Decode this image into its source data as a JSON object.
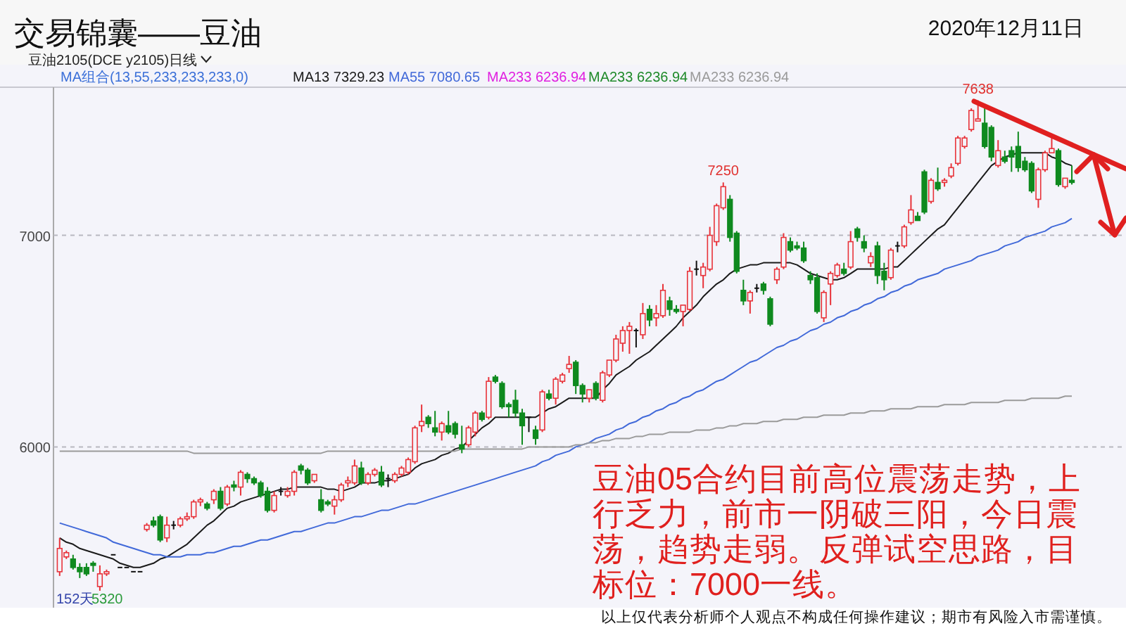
{
  "chart_data": {
    "type": "candlestick",
    "title": "交易锦囊——豆油",
    "subtitle": "2020年12月11日",
    "categories": [
      null,
      null,
      null,
      null,
      null,
      null,
      null,
      null,
      null,
      null,
      null,
      null,
      null,
      null,
      null,
      null,
      null,
      null,
      null,
      null,
      null,
      null,
      null,
      null,
      null,
      null,
      null,
      null,
      null,
      null,
      null,
      null,
      null,
      null,
      null,
      null,
      null,
      null,
      null,
      null,
      null,
      null,
      null,
      null,
      null,
      null,
      null,
      null,
      null,
      null,
      null,
      null,
      null,
      null,
      null,
      null,
      null,
      null,
      null,
      null,
      null,
      null,
      null,
      null,
      null,
      null,
      null,
      null,
      null,
      null,
      null,
      null,
      null,
      null,
      null,
      null,
      null,
      null,
      null,
      null,
      null,
      null,
      null,
      null,
      null,
      null,
      null,
      null,
      null,
      null,
      null,
      null,
      null,
      null,
      null,
      null,
      null,
      null,
      null,
      null,
      null,
      null,
      null,
      null,
      null,
      null,
      null,
      null,
      null,
      null,
      null,
      null,
      null,
      null,
      null,
      null,
      null,
      null,
      null,
      null,
      null,
      null,
      null,
      null,
      null,
      null,
      null,
      null,
      null,
      null,
      null,
      null,
      null,
      null,
      null,
      null,
      null,
      null,
      null,
      null,
      null,
      null,
      null,
      null,
      null,
      null,
      null,
      null,
      null,
      null,
      null,
      null
    ],
    "ohlc": [
      [
        5410,
        5570,
        5390,
        5520
      ],
      [
        5480,
        5510,
        5470,
        5500
      ],
      [
        5470,
        5490,
        5420,
        5430
      ],
      [
        5430,
        5450,
        5380,
        5410
      ],
      [
        5430,
        5450,
        5390,
        5400
      ],
      [
        5450,
        5460,
        5410,
        5440
      ],
      [
        5340,
        5440,
        5320,
        5400
      ],
      [
        5400,
        5420,
        5390,
        5410
      ],
      [
        5490,
        5490,
        5490,
        5490
      ],
      [
        5430,
        5430,
        5430,
        5430
      ],
      [
        5430,
        5430,
        5430,
        5430
      ],
      [
        5410,
        5410,
        5410,
        5410
      ],
      [
        5410,
        5410,
        5410,
        5410
      ],
      [
        5610,
        5640,
        5600,
        5630
      ],
      [
        5650,
        5670,
        5620,
        5630
      ],
      [
        5670,
        5680,
        5550,
        5560
      ],
      [
        5570,
        5670,
        5550,
        5630
      ],
      [
        5630,
        5650,
        5610,
        5630
      ],
      [
        5630,
        5670,
        5620,
        5660
      ],
      [
        5660,
        5690,
        5650,
        5670
      ],
      [
        5670,
        5750,
        5660,
        5740
      ],
      [
        5740,
        5760,
        5720,
        5750
      ],
      [
        5730,
        5740,
        5700,
        5710
      ],
      [
        5750,
        5800,
        5730,
        5790
      ],
      [
        5790,
        5810,
        5700,
        5710
      ],
      [
        5730,
        5820,
        5720,
        5810
      ],
      [
        5820,
        5840,
        5790,
        5810
      ],
      [
        5810,
        5890,
        5770,
        5880
      ],
      [
        5870,
        5880,
        5830,
        5850
      ],
      [
        5850,
        5860,
        5820,
        5830
      ],
      [
        5830,
        5840,
        5760,
        5770
      ],
      [
        5790,
        5810,
        5690,
        5700
      ],
      [
        5700,
        5790,
        5690,
        5770
      ],
      [
        5790,
        5810,
        5770,
        5790
      ],
      [
        5770,
        5810,
        5760,
        5790
      ],
      [
        5790,
        5890,
        5770,
        5880
      ],
      [
        5910,
        5920,
        5870,
        5890
      ],
      [
        5890,
        5900,
        5820,
        5830
      ],
      [
        5840,
        5870,
        5830,
        5870
      ],
      [
        5750,
        5800,
        5690,
        5700
      ],
      [
        5740,
        5750,
        5720,
        5730
      ],
      [
        5720,
        5770,
        5680,
        5750
      ],
      [
        5750,
        5830,
        5740,
        5820
      ],
      [
        5830,
        5860,
        5810,
        5840
      ],
      [
        5830,
        5940,
        5820,
        5910
      ],
      [
        5900,
        5930,
        5820,
        5830
      ],
      [
        5830,
        5880,
        5820,
        5870
      ],
      [
        5870,
        5900,
        5860,
        5890
      ],
      [
        5880,
        5910,
        5810,
        5820
      ],
      [
        5850,
        5870,
        5810,
        5850
      ],
      [
        5840,
        5880,
        5830,
        5870
      ],
      [
        5870,
        5910,
        5860,
        5900
      ],
      [
        5880,
        5950,
        5870,
        5940
      ],
      [
        5930,
        6100,
        5920,
        6090
      ],
      [
        6100,
        6200,
        6070,
        6120
      ],
      [
        6140,
        6150,
        6090,
        6110
      ],
      [
        6090,
        6170,
        6050,
        6070
      ],
      [
        6070,
        6120,
        6030,
        6110
      ],
      [
        6100,
        6170,
        6060,
        6070
      ],
      [
        6110,
        6120,
        6040,
        6060
      ],
      [
        6010,
        6100,
        5970,
        5990
      ],
      [
        6010,
        6100,
        6000,
        6090
      ],
      [
        6070,
        6170,
        6050,
        6160
      ],
      [
        6160,
        6170,
        6120,
        6130
      ],
      [
        6140,
        6330,
        6130,
        6310
      ],
      [
        6330,
        6340,
        6300,
        6310
      ],
      [
        6300,
        6310,
        6180,
        6190
      ],
      [
        6200,
        6210,
        6140,
        6190
      ],
      [
        6220,
        6270,
        6140,
        6160
      ],
      [
        6160,
        6180,
        6010,
        6100
      ],
      [
        6140,
        6140,
        6070,
        6140
      ],
      [
        6080,
        6100,
        6010,
        6040
      ],
      [
        6080,
        6270,
        6070,
        6260
      ],
      [
        6250,
        6270,
        6220,
        6230
      ],
      [
        6230,
        6330,
        6200,
        6320
      ],
      [
        6310,
        6350,
        6300,
        6340
      ],
      [
        6370,
        6430,
        6350,
        6390
      ],
      [
        6400,
        6410,
        6250,
        6290
      ],
      [
        6290,
        6300,
        6210,
        6250
      ],
      [
        6230,
        6270,
        6210,
        6270
      ],
      [
        6300,
        6310,
        6220,
        6230
      ],
      [
        6220,
        6360,
        6210,
        6350
      ],
      [
        6340,
        6410,
        6330,
        6410
      ],
      [
        6410,
        6530,
        6400,
        6510
      ],
      [
        6490,
        6570,
        6450,
        6550
      ],
      [
        6550,
        6590,
        6440,
        6570
      ],
      [
        6550,
        6560,
        6470,
        6550
      ],
      [
        6530,
        6680,
        6510,
        6630
      ],
      [
        6650,
        6670,
        6570,
        6600
      ],
      [
        6610,
        6670,
        6570,
        6630
      ],
      [
        6620,
        6770,
        6610,
        6740
      ],
      [
        6690,
        6710,
        6620,
        6650
      ],
      [
        6650,
        6670,
        6630,
        6640
      ],
      [
        6640,
        6670,
        6570,
        6670
      ],
      [
        6650,
        6850,
        6640,
        6830
      ],
      [
        6840,
        6880,
        6810,
        6840
      ],
      [
        6810,
        6870,
        6750,
        6850
      ],
      [
        6840,
        7040,
        6830,
        7000
      ],
      [
        6970,
        7150,
        6950,
        7140
      ],
      [
        7130,
        7250,
        7120,
        7230
      ],
      [
        7170,
        7190,
        6970,
        6990
      ],
      [
        7010,
        7020,
        6820,
        6830
      ],
      [
        6740,
        6790,
        6670,
        6690
      ],
      [
        6690,
        6740,
        6630,
        6730
      ],
      [
        6750,
        6770,
        6730,
        6750
      ],
      [
        6770,
        6780,
        6720,
        6740
      ],
      [
        6700,
        6710,
        6570,
        6580
      ],
      [
        6790,
        6850,
        6770,
        6840
      ],
      [
        6850,
        7010,
        6840,
        6990
      ],
      [
        6970,
        6990,
        6920,
        6930
      ],
      [
        6950,
        6970,
        6930,
        6940
      ],
      [
        6940,
        6970,
        6870,
        6880
      ],
      [
        6810,
        6830,
        6770,
        6790
      ],
      [
        6800,
        6820,
        6630,
        6640
      ],
      [
        6610,
        6740,
        6590,
        6730
      ],
      [
        6770,
        6830,
        6670,
        6820
      ],
      [
        6810,
        6870,
        6800,
        6860
      ],
      [
        6840,
        6870,
        6810,
        6820
      ],
      [
        6850,
        7020,
        6840,
        6970
      ],
      [
        7030,
        7040,
        6970,
        6990
      ],
      [
        6970,
        7000,
        6920,
        6940
      ],
      [
        6870,
        6920,
        6850,
        6900
      ],
      [
        6950,
        6970,
        6770,
        6810
      ],
      [
        6830,
        6870,
        6740,
        6790
      ],
      [
        6800,
        6940,
        6790,
        6930
      ],
      [
        6950,
        6970,
        6920,
        6950
      ],
      [
        6950,
        7050,
        6940,
        7040
      ],
      [
        7060,
        7190,
        7050,
        7120
      ],
      [
        7090,
        7110,
        7070,
        7070
      ],
      [
        7300,
        7310,
        7100,
        7110
      ],
      [
        7160,
        7270,
        7150,
        7260
      ],
      [
        7250,
        7320,
        7210,
        7220
      ],
      [
        7250,
        7270,
        7230,
        7260
      ],
      [
        7280,
        7340,
        7270,
        7320
      ],
      [
        7340,
        7470,
        7330,
        7460
      ],
      [
        7420,
        7470,
        7410,
        7460
      ],
      [
        7500,
        7600,
        7490,
        7590
      ],
      [
        7540,
        7638,
        7540,
        7550
      ],
      [
        7530,
        7600,
        7410,
        7420
      ],
      [
        7510,
        7520,
        7350,
        7370
      ],
      [
        7330,
        7450,
        7320,
        7400
      ],
      [
        7370,
        7400,
        7340,
        7350
      ],
      [
        7400,
        7420,
        7300,
        7370
      ],
      [
        7420,
        7490,
        7300,
        7320
      ],
      [
        7350,
        7370,
        7300,
        7310
      ],
      [
        7340,
        7350,
        7200,
        7210
      ],
      [
        7170,
        7320,
        7130,
        7310
      ],
      [
        7310,
        7400,
        7300,
        7390
      ],
      [
        7390,
        7470,
        7390,
        7410
      ],
      [
        7400,
        7410,
        7230,
        7240
      ],
      [
        7230,
        7270,
        7220,
        7270
      ],
      [
        7260,
        7330,
        7240,
        7250
      ]
    ],
    "series": [
      {
        "name": "MA13 7329.23",
        "type": "line",
        "color": "#1a1a1a",
        "values": [
          5570,
          5550,
          5540,
          5520,
          5510,
          5500,
          5490,
          5480,
          5470,
          5450,
          5440,
          5430,
          5430,
          5440,
          5450,
          5470,
          5480,
          5500,
          5520,
          5540,
          5570,
          5600,
          5630,
          5650,
          5680,
          5710,
          5720,
          5740,
          5750,
          5760,
          5770,
          5780,
          5790,
          5800,
          5800,
          5810,
          5810,
          5810,
          5810,
          5810,
          5800,
          5800,
          5790,
          5800,
          5810,
          5830,
          5830,
          5830,
          5840,
          5840,
          5850,
          5860,
          5870,
          5900,
          5920,
          5930,
          5940,
          5960,
          5970,
          5990,
          6000,
          6030,
          6060,
          6090,
          6110,
          6140,
          6140,
          6140,
          6140,
          6140,
          6140,
          6140,
          6160,
          6180,
          6190,
          6210,
          6230,
          6230,
          6230,
          6230,
          6230,
          6270,
          6300,
          6340,
          6360,
          6380,
          6410,
          6430,
          6450,
          6480,
          6510,
          6540,
          6570,
          6610,
          6640,
          6670,
          6710,
          6740,
          6770,
          6790,
          6820,
          6840,
          6850,
          6860,
          6860,
          6870,
          6870,
          6870,
          6870,
          6870,
          6860,
          6840,
          6820,
          6810,
          6800,
          6790,
          6790,
          6800,
          6820,
          6840,
          6840,
          6840,
          6840,
          6840,
          6850,
          6850,
          6880,
          6910,
          6940,
          6970,
          7000,
          7030,
          7050,
          7090,
          7130,
          7170,
          7210,
          7250,
          7290,
          7330,
          7350,
          7370,
          7380,
          7390,
          7390,
          7390,
          7390,
          7390,
          7370,
          7360,
          7340,
          7330
        ]
      },
      {
        "name": "MA55 7080.65",
        "type": "line",
        "color": "#4169d9",
        "values": [
          5640,
          5630,
          5620,
          5610,
          5600,
          5590,
          5580,
          5570,
          5550,
          5540,
          5530,
          5520,
          5510,
          5500,
          5490,
          5490,
          5480,
          5480,
          5480,
          5490,
          5490,
          5490,
          5500,
          5500,
          5510,
          5520,
          5530,
          5530,
          5540,
          5550,
          5560,
          5560,
          5570,
          5580,
          5590,
          5600,
          5600,
          5610,
          5620,
          5630,
          5640,
          5640,
          5650,
          5660,
          5670,
          5670,
          5680,
          5690,
          5700,
          5700,
          5710,
          5720,
          5730,
          5730,
          5740,
          5750,
          5760,
          5770,
          5780,
          5790,
          5800,
          5810,
          5820,
          5830,
          5840,
          5850,
          5860,
          5870,
          5880,
          5890,
          5900,
          5910,
          5930,
          5940,
          5960,
          5970,
          5980,
          6000,
          6010,
          6020,
          6040,
          6050,
          6060,
          6080,
          6090,
          6110,
          6120,
          6140,
          6150,
          6170,
          6180,
          6200,
          6210,
          6230,
          6240,
          6260,
          6270,
          6290,
          6310,
          6320,
          6340,
          6360,
          6380,
          6400,
          6410,
          6430,
          6450,
          6470,
          6480,
          6500,
          6510,
          6530,
          6550,
          6560,
          6580,
          6590,
          6610,
          6620,
          6640,
          6650,
          6670,
          6680,
          6700,
          6710,
          6730,
          6740,
          6760,
          6770,
          6790,
          6800,
          6810,
          6820,
          6840,
          6850,
          6860,
          6870,
          6880,
          6900,
          6910,
          6920,
          6930,
          6950,
          6960,
          6970,
          6990,
          7000,
          7010,
          7020,
          7040,
          7050,
          7060,
          7080
        ]
      },
      {
        "name": "MA233 6236.94",
        "type": "line",
        "color": "#9a9a9a",
        "values": [
          5980,
          5980,
          5980,
          5980,
          5980,
          5980,
          5980,
          5980,
          5980,
          5980,
          5980,
          5980,
          5980,
          5980,
          5980,
          5980,
          5980,
          5980,
          5980,
          5980,
          5970,
          5970,
          5970,
          5970,
          5970,
          5970,
          5970,
          5970,
          5970,
          5970,
          5970,
          5970,
          5970,
          5970,
          5970,
          5970,
          5970,
          5970,
          5970,
          5970,
          5980,
          5980,
          5980,
          5980,
          5980,
          5980,
          5980,
          5980,
          5980,
          5980,
          5980,
          5980,
          5980,
          5980,
          5980,
          5980,
          5980,
          5980,
          5980,
          5980,
          5990,
          5990,
          5990,
          5990,
          5990,
          5990,
          5990,
          5990,
          5990,
          5990,
          6000,
          6000,
          6000,
          6000,
          6000,
          6000,
          6000,
          6010,
          6010,
          6020,
          6020,
          6030,
          6030,
          6040,
          6040,
          6040,
          6050,
          6050,
          6060,
          6060,
          6060,
          6070,
          6070,
          6070,
          6070,
          6080,
          6080,
          6080,
          6090,
          6090,
          6100,
          6100,
          6110,
          6110,
          6110,
          6120,
          6120,
          6120,
          6130,
          6130,
          6130,
          6140,
          6140,
          6140,
          6150,
          6150,
          6150,
          6150,
          6160,
          6160,
          6160,
          6170,
          6170,
          6170,
          6180,
          6180,
          6180,
          6180,
          6190,
          6190,
          6190,
          6190,
          6200,
          6200,
          6200,
          6200,
          6210,
          6210,
          6210,
          6210,
          6210,
          6220,
          6220,
          6220,
          6220,
          6230,
          6230,
          6230,
          6230,
          6230,
          6240,
          6240
        ]
      }
    ],
    "ylim": [
      5240,
      7700
    ],
    "yticks": [
      6000,
      7000
    ],
    "grid": "y",
    "legend": "top left",
    "tick_labels": "y",
    "annotations": [
      "豆油2105(DCE y2105)",
      "日线",
      "MA组合(13,55,233,233,233,0)",
      "MA233 6236.94",
      "MA233 6236.94",
      {
        "text": "7250",
        "y": 7250
      },
      {
        "text": "7638",
        "y": 7638
      },
      "5320",
      "152天",
      "豆油05合约目前高位震荡走势，上行乏力，前市一阴破三阳，今日震荡，趋势走弱。反弹试空思路，目标位：7000一线。",
      "以上仅代表分析师个人观点不构成任何操作建议；期市有风险入市需谨慎。"
    ]
  }
}
